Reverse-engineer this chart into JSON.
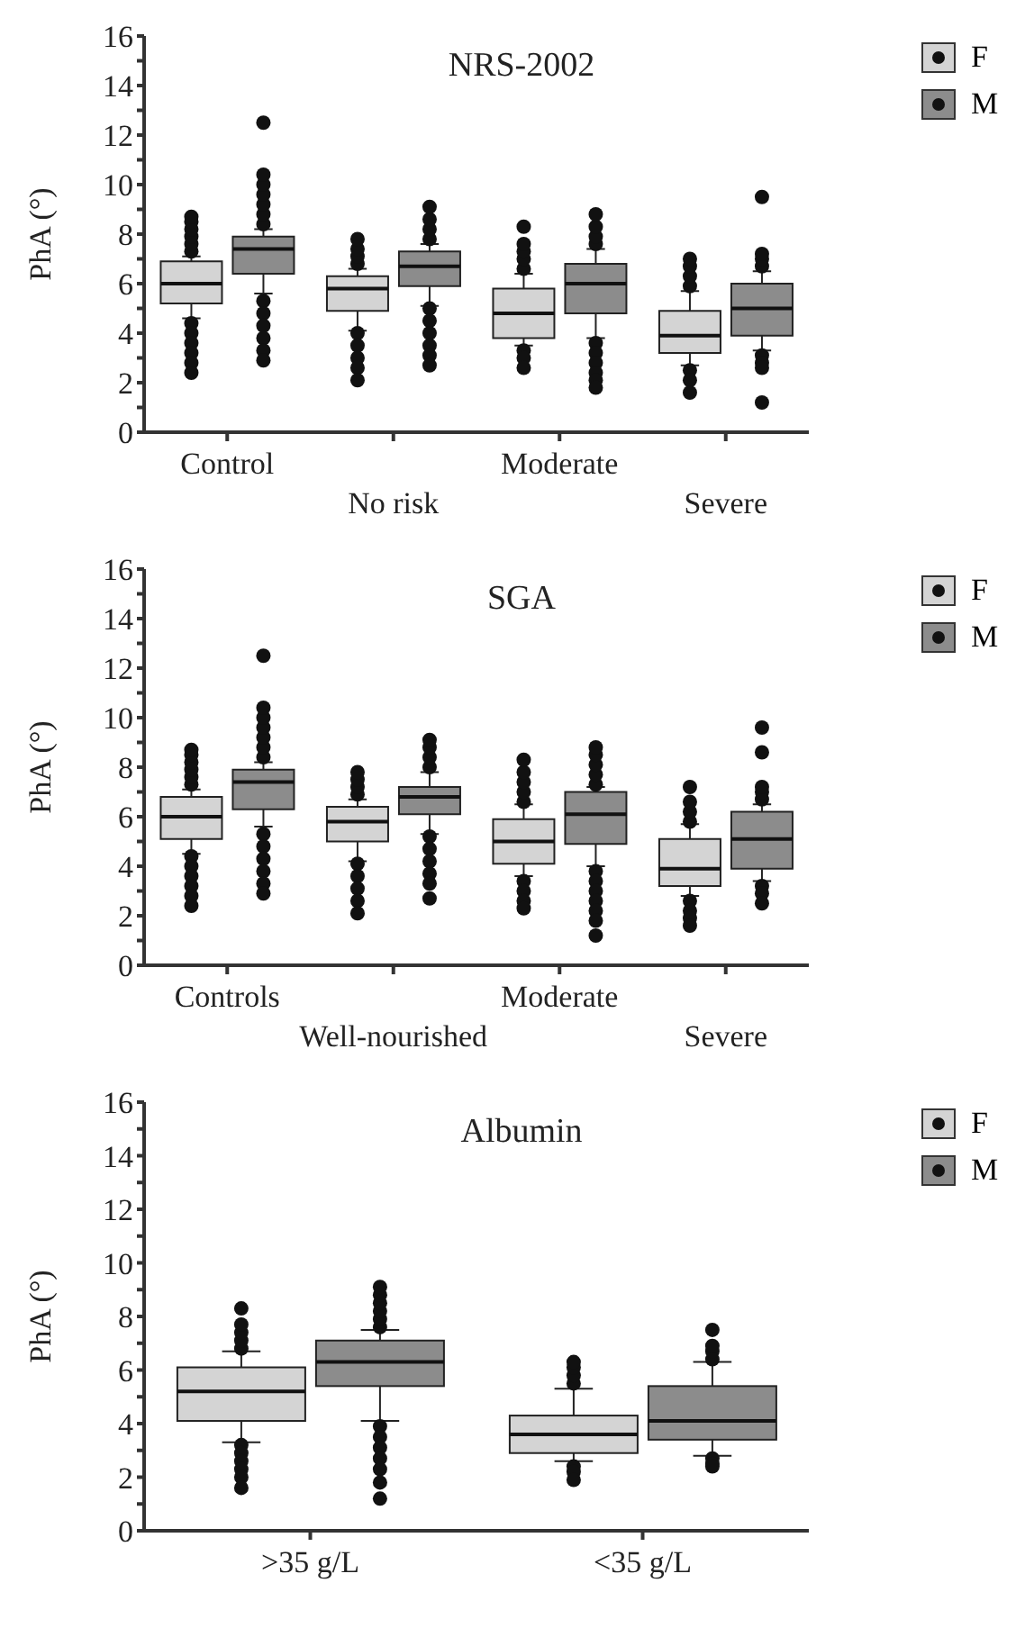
{
  "chart_data": [
    {
      "type": "box",
      "title": "NRS-2002",
      "ylabel": "PhA (°)",
      "categories": [
        "Control",
        "No risk",
        "Moderate",
        "Severe"
      ],
      "ylim": [
        0,
        16
      ],
      "yticks": [
        0,
        {
          "value": 1,
          "label": null
        },
        2,
        {
          "value": 3,
          "label": null
        },
        4,
        {
          "value": 5,
          "label": null
        },
        6,
        {
          "value": 7,
          "label": null
        },
        8,
        {
          "value": 9,
          "label": null
        },
        10,
        {
          "value": 11,
          "label": null
        },
        12,
        {
          "value": 13,
          "label": null
        },
        14,
        {
          "value": 15,
          "label": null
        },
        16
      ],
      "legend": "top right",
      "series": [
        {
          "name": "F",
          "color": "#d4d4d4",
          "boxes": [
            {
              "low": 4.6,
              "q1": 5.2,
              "median": 6.0,
              "q3": 6.9,
              "high": 7.1,
              "outliers": [
                7.3,
                7.6,
                7.9,
                8.2,
                8.5,
                8.7,
                4.4,
                4.0,
                3.6,
                3.2,
                2.8,
                2.4
              ]
            },
            {
              "low": 4.1,
              "q1": 4.9,
              "median": 5.8,
              "q3": 6.3,
              "high": 6.6,
              "outliers": [
                6.8,
                7.1,
                7.4,
                7.8,
                4.0,
                3.5,
                3.0,
                2.6,
                2.1
              ]
            },
            {
              "low": 3.5,
              "q1": 3.8,
              "median": 4.8,
              "q3": 5.8,
              "high": 6.4,
              "outliers": [
                6.6,
                7.0,
                7.3,
                7.6,
                8.3,
                3.3,
                3.0,
                2.6
              ]
            },
            {
              "low": 2.7,
              "q1": 3.2,
              "median": 3.9,
              "q3": 4.9,
              "high": 5.7,
              "outliers": [
                5.9,
                6.3,
                6.7,
                7.0,
                2.5,
                2.1,
                1.6
              ]
            }
          ]
        },
        {
          "name": "M",
          "color": "#8c8c8c",
          "boxes": [
            {
              "low": 5.6,
              "q1": 6.4,
              "median": 7.4,
              "q3": 7.9,
              "high": 8.2,
              "outliers": [
                8.4,
                8.8,
                9.2,
                9.6,
                10.0,
                10.4,
                12.5,
                5.3,
                4.8,
                4.3,
                3.8,
                3.3,
                2.9
              ]
            },
            {
              "low": 5.1,
              "q1": 5.9,
              "median": 6.7,
              "q3": 7.3,
              "high": 7.6,
              "outliers": [
                7.8,
                8.2,
                8.6,
                9.1,
                5.0,
                4.5,
                4.0,
                3.5,
                3.1,
                2.7
              ]
            },
            {
              "low": 3.8,
              "q1": 4.8,
              "median": 6.0,
              "q3": 6.8,
              "high": 7.4,
              "outliers": [
                7.6,
                7.9,
                8.3,
                8.8,
                3.6,
                3.2,
                2.8,
                2.4,
                2.1,
                1.8
              ]
            },
            {
              "low": 3.3,
              "q1": 3.9,
              "median": 5.0,
              "q3": 6.0,
              "high": 6.5,
              "outliers": [
                6.7,
                7.0,
                7.2,
                9.5,
                3.1,
                2.8,
                2.6,
                1.2
              ]
            }
          ]
        }
      ]
    },
    {
      "type": "box",
      "title": "SGA",
      "ylabel": "PhA (°)",
      "categories": [
        "Controls",
        "Well-nourished",
        "Moderate",
        "Severe"
      ],
      "ylim": [
        0,
        16
      ],
      "yticks": [
        0,
        {
          "value": 1,
          "label": null
        },
        2,
        {
          "value": 3,
          "label": null
        },
        4,
        {
          "value": 5,
          "label": null
        },
        6,
        {
          "value": 7,
          "label": null
        },
        8,
        {
          "value": 9,
          "label": null
        },
        10,
        {
          "value": 11,
          "label": null
        },
        12,
        {
          "value": 13,
          "label": null
        },
        14,
        {
          "value": 15,
          "label": null
        },
        16
      ],
      "legend": "top right",
      "series": [
        {
          "name": "F",
          "color": "#d4d4d4",
          "boxes": [
            {
              "low": 4.5,
              "q1": 5.1,
              "median": 6.0,
              "q3": 6.8,
              "high": 7.1,
              "outliers": [
                7.3,
                7.6,
                7.9,
                8.2,
                8.5,
                8.7,
                4.4,
                4.0,
                3.6,
                3.2,
                2.8,
                2.4
              ]
            },
            {
              "low": 4.2,
              "q1": 5.0,
              "median": 5.8,
              "q3": 6.4,
              "high": 6.7,
              "outliers": [
                6.9,
                7.2,
                7.5,
                7.8,
                4.1,
                3.6,
                3.1,
                2.6,
                2.1
              ]
            },
            {
              "low": 3.6,
              "q1": 4.1,
              "median": 5.0,
              "q3": 5.9,
              "high": 6.5,
              "outliers": [
                6.6,
                7.0,
                7.4,
                7.8,
                8.3,
                3.4,
                3.0,
                2.6,
                2.3
              ]
            },
            {
              "low": 2.8,
              "q1": 3.2,
              "median": 3.9,
              "q3": 5.1,
              "high": 5.7,
              "outliers": [
                5.8,
                6.2,
                6.6,
                7.2,
                2.6,
                2.2,
                1.9,
                1.6
              ]
            }
          ]
        },
        {
          "name": "M",
          "color": "#8c8c8c",
          "boxes": [
            {
              "low": 5.6,
              "q1": 6.3,
              "median": 7.4,
              "q3": 7.9,
              "high": 8.2,
              "outliers": [
                8.4,
                8.8,
                9.2,
                9.6,
                10.0,
                10.4,
                12.5,
                5.3,
                4.8,
                4.3,
                3.8,
                3.3,
                2.9
              ]
            },
            {
              "low": 5.3,
              "q1": 6.1,
              "median": 6.8,
              "q3": 7.2,
              "high": 7.8,
              "outliers": [
                8.0,
                8.4,
                8.8,
                9.1,
                5.2,
                4.7,
                4.2,
                3.7,
                3.3,
                2.7
              ]
            },
            {
              "low": 4.0,
              "q1": 4.9,
              "median": 6.1,
              "q3": 7.0,
              "high": 7.2,
              "outliers": [
                7.3,
                7.7,
                8.1,
                8.5,
                8.8,
                3.8,
                3.4,
                3.0,
                2.6,
                2.2,
                1.8,
                1.2
              ]
            },
            {
              "low": 3.4,
              "q1": 3.9,
              "median": 5.1,
              "q3": 6.2,
              "high": 6.5,
              "outliers": [
                6.7,
                7.0,
                7.2,
                8.6,
                9.6,
                3.2,
                2.9,
                2.5
              ]
            }
          ]
        }
      ]
    },
    {
      "type": "box",
      "title": "Albumin",
      "ylabel": "PhA (°)",
      "categories": [
        ">35 g/L",
        "<35 g/L"
      ],
      "ylim": [
        0,
        16
      ],
      "yticks": [
        0,
        {
          "value": 1,
          "label": null
        },
        2,
        {
          "value": 3,
          "label": null
        },
        4,
        {
          "value": 5,
          "label": null
        },
        6,
        {
          "value": 7,
          "label": null
        },
        8,
        {
          "value": 9,
          "label": null
        },
        10,
        {
          "value": 11,
          "label": null
        },
        12,
        {
          "value": 13,
          "label": null
        },
        14,
        {
          "value": 15,
          "label": null
        },
        16
      ],
      "legend": "top right",
      "series": [
        {
          "name": "F",
          "color": "#d4d4d4",
          "boxes": [
            {
              "low": 3.3,
              "q1": 4.1,
              "median": 5.2,
              "q3": 6.1,
              "high": 6.7,
              "outliers": [
                6.8,
                7.1,
                7.4,
                7.7,
                8.3,
                3.2,
                2.9,
                2.6,
                2.3,
                2.0,
                1.6
              ]
            },
            {
              "low": 2.6,
              "q1": 2.9,
              "median": 3.6,
              "q3": 4.3,
              "high": 5.3,
              "outliers": [
                5.5,
                5.8,
                6.1,
                6.3,
                2.4,
                2.2,
                1.9
              ]
            }
          ]
        },
        {
          "name": "M",
          "color": "#8c8c8c",
          "boxes": [
            {
              "low": 4.1,
              "q1": 5.4,
              "median": 6.3,
              "q3": 7.1,
              "high": 7.5,
              "outliers": [
                7.6,
                7.9,
                8.2,
                8.5,
                8.8,
                9.1,
                3.9,
                3.5,
                3.1,
                2.7,
                2.3,
                1.8,
                1.2
              ]
            },
            {
              "low": 2.8,
              "q1": 3.4,
              "median": 4.1,
              "q3": 5.4,
              "high": 6.3,
              "outliers": [
                6.4,
                6.7,
                6.9,
                7.5,
                2.7,
                2.5,
                2.4
              ]
            }
          ]
        }
      ]
    }
  ]
}
